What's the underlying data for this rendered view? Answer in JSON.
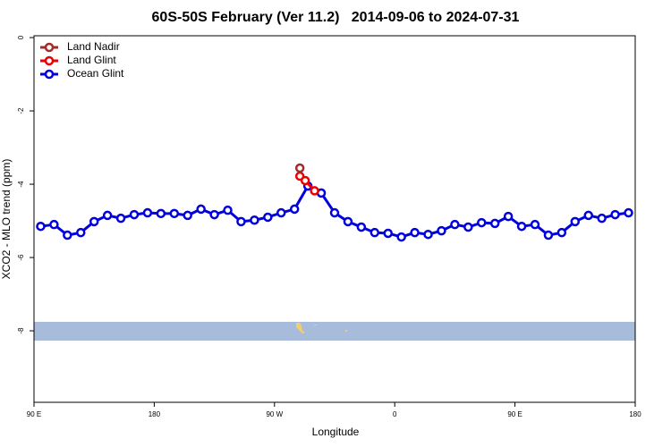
{
  "chart_data": {
    "type": "line",
    "title": "60S-50S February (Ver 11.2)   2014-09-06 to 2024-07-31",
    "xlabel": "Longitude",
    "ylabel": "XCO2 - MLO trend (ppm)",
    "xlim": [
      90,
      540
    ],
    "ylim": [
      -9.95,
      0.05
    ],
    "xticks": [
      {
        "value": 90,
        "label": "90 E"
      },
      180,
      {
        "value": 270,
        "label": "90 W"
      },
      {
        "value": 360,
        "label": "0"
      },
      {
        "value": 450,
        "label": "90 E"
      },
      {
        "value": 540,
        "label": "180"
      }
    ],
    "yticks": [
      0,
      -2,
      -4,
      -6,
      -8
    ],
    "legend": "upper-left",
    "series": [
      {
        "name": "Land Nadir",
        "color": "#a52a2a",
        "x": [
          289
        ],
        "values": [
          -3.56
        ]
      },
      {
        "name": "Land Glint",
        "color": "#ee0000",
        "x": [
          289,
          293,
          300
        ],
        "values": [
          -3.78,
          -3.9,
          -4.18
        ]
      },
      {
        "name": "Ocean Glint",
        "color": "#0000dd",
        "x": [
          95,
          105,
          115,
          125,
          135,
          145,
          155,
          165,
          175,
          185,
          195,
          205,
          215,
          225,
          235,
          245,
          255,
          265,
          275,
          285,
          295,
          305,
          315,
          325,
          335,
          345,
          355,
          365,
          375,
          385,
          395,
          405,
          415,
          425,
          435,
          445,
          455,
          465,
          475,
          485,
          495,
          505,
          515,
          525,
          535
        ],
        "values": [
          -5.15,
          -5.1,
          -5.39,
          -5.32,
          -5.02,
          -4.85,
          -4.93,
          -4.83,
          -4.78,
          -4.8,
          -4.8,
          -4.85,
          -4.68,
          -4.83,
          -4.71,
          -5.02,
          -4.98,
          -4.9,
          -4.78,
          -4.68,
          -4.05,
          -4.24,
          -4.78,
          -5.02,
          -5.17,
          -5.32,
          -5.34,
          -5.44,
          -5.32,
          -5.37,
          -5.27,
          -5.1,
          -5.17,
          -5.05,
          -5.07,
          -4.88,
          -5.15,
          -5.1,
          -5.39,
          -5.32,
          -5.02,
          -4.85,
          -4.93,
          -4.83,
          -4.78
        ]
      }
    ]
  }
}
